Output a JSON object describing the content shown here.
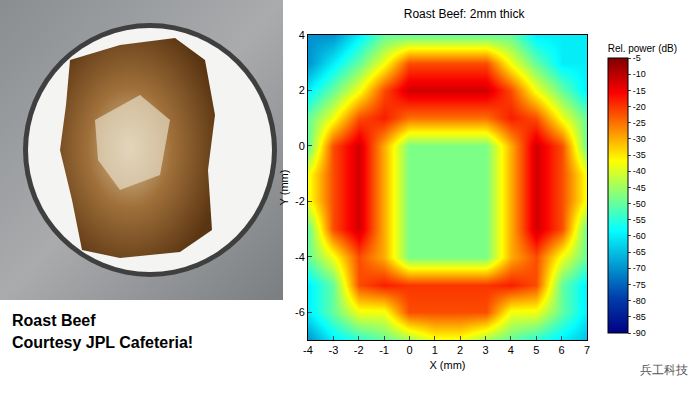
{
  "chart_data": {
    "type": "heatmap",
    "title": "Roast Beef: 2mm thick",
    "x_label": "X (mm)",
    "y_label": "Y (mm)",
    "x": [
      -4,
      -3,
      -2,
      -1,
      0,
      1,
      2,
      3,
      4,
      5,
      6,
      7
    ],
    "y": [
      -7,
      -6,
      -5,
      -4,
      -3,
      -2,
      -1,
      0,
      1,
      2,
      3,
      4
    ],
    "z": [
      [
        -70,
        -60,
        -55,
        -50,
        -45,
        -38,
        -38,
        -45,
        -50,
        -55,
        -60,
        -65
      ],
      [
        -60,
        -50,
        -38,
        -38,
        -22,
        -22,
        -22,
        -22,
        -38,
        -38,
        -50,
        -60
      ],
      [
        -60,
        -50,
        -22,
        -18,
        -20,
        -20,
        -20,
        -20,
        -18,
        -22,
        -50,
        -60
      ],
      [
        -50,
        -38,
        -22,
        -30,
        -48,
        -48,
        -48,
        -48,
        -30,
        -22,
        -38,
        -50
      ],
      [
        -50,
        -22,
        -12,
        -30,
        -48,
        -48,
        -48,
        -48,
        -30,
        -12,
        -22,
        -50
      ],
      [
        -38,
        -22,
        -12,
        -30,
        -48,
        -48,
        -48,
        -48,
        -30,
        -12,
        -22,
        -38
      ],
      [
        -38,
        -22,
        -12,
        -30,
        -48,
        -48,
        -48,
        -48,
        -30,
        -12,
        -22,
        -38
      ],
      [
        -50,
        -22,
        -12,
        -30,
        -48,
        -48,
        -48,
        -48,
        -30,
        -12,
        -22,
        -50
      ],
      [
        -50,
        -38,
        -22,
        -18,
        -25,
        -25,
        -25,
        -25,
        -18,
        -22,
        -38,
        -50
      ],
      [
        -60,
        -50,
        -38,
        -22,
        -12,
        -12,
        -12,
        -12,
        -22,
        -38,
        -50,
        -60
      ],
      [
        -70,
        -60,
        -50,
        -38,
        -22,
        -22,
        -22,
        -22,
        -38,
        -50,
        -60,
        -60
      ],
      [
        -70,
        -70,
        -60,
        -50,
        -50,
        -50,
        -50,
        -50,
        -50,
        -60,
        -60,
        -60
      ]
    ],
    "xlim": [
      -4,
      7
    ],
    "ylim": [
      -7,
      4
    ],
    "xticks": [
      -4,
      -3,
      -2,
      -1,
      0,
      1,
      2,
      3,
      4,
      5,
      6,
      7
    ],
    "yticks": [
      -6,
      -4,
      -2,
      0,
      2,
      4
    ],
    "colorbar": {
      "title": "Rel. power (dB)",
      "range": [
        -90,
        -5
      ],
      "ticks": [
        -5,
        -10,
        -15,
        -20,
        -25,
        -30,
        -35,
        -40,
        -45,
        -50,
        -55,
        -60,
        -65,
        -70,
        -75,
        -80,
        -85,
        -90
      ]
    }
  },
  "photo_caption": [
    "Roast Beef",
    "Courtesy JPL Cafeteria!"
  ],
  "watermark": "兵工科技"
}
